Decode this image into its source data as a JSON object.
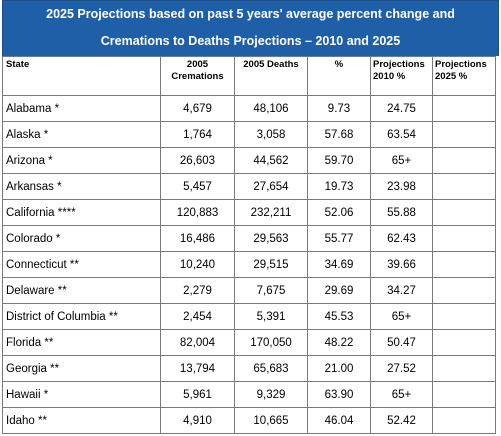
{
  "title": {
    "line1": "2025 Projections based on past 5 years' average percent change and",
    "line2": "Cremations to Deaths Projections – 2010 and 2025"
  },
  "columns": [
    "State",
    "2005 Cremations",
    "2005 Deaths",
    "%",
    "Projections 2010 %",
    "Projections 2025 %"
  ],
  "rows": [
    [
      "Alabama *",
      "4,679",
      "48,106",
      "9.73",
      "24.75",
      ""
    ],
    [
      "Alaska *",
      "1,764",
      "3,058",
      "57.68",
      "63.54",
      ""
    ],
    [
      "Arizona *",
      "26,603",
      "44,562",
      "59.70",
      "65+",
      ""
    ],
    [
      "Arkansas *",
      "5,457",
      "27,654",
      "19.73",
      "23.98",
      ""
    ],
    [
      "California ****",
      "120,883",
      "232,211",
      "52.06",
      "55.88",
      ""
    ],
    [
      "Colorado *",
      "16,486",
      "29,563",
      "55.77",
      "62.43",
      ""
    ],
    [
      "Connecticut **",
      "10,240",
      "29,515",
      "34.69",
      "39.66",
      ""
    ],
    [
      "Delaware **",
      "2,279",
      "7,675",
      "29.69",
      "34.27",
      ""
    ],
    [
      "District of Columbia **",
      "2,454",
      "5,391",
      "45.53",
      "65+",
      ""
    ],
    [
      "Florida **",
      "82,004",
      "170,050",
      "48.22",
      "50.47",
      ""
    ],
    [
      "Georgia **",
      "13,794",
      "65,683",
      "21.00",
      "27.52",
      ""
    ],
    [
      "Hawaii *",
      "5,961",
      "9,329",
      "63.90",
      "65+",
      ""
    ],
    [
      "Idaho **",
      "4,910",
      "10,665",
      "46.04",
      "52.42",
      ""
    ]
  ],
  "colors": {
    "title_background": "#1f5fa8",
    "title_text": "#ffffff",
    "grid_line": "#7a7a7a"
  }
}
